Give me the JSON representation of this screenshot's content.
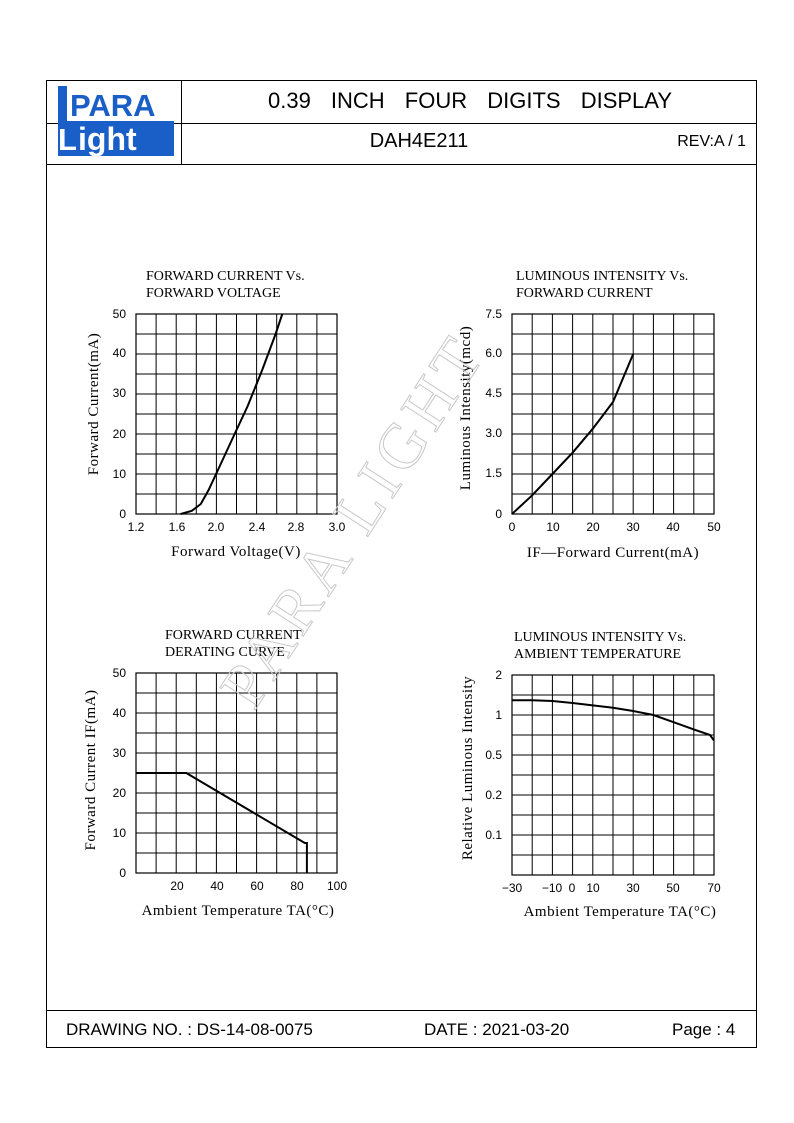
{
  "header": {
    "logo_top": "PARA",
    "logo_bottom": "ight",
    "logo_letter": "L",
    "title": "0.39 INCH FOUR DIGITS DISPLAY",
    "model": "DAH4E211",
    "revision": "REV:A / 1"
  },
  "watermark": "PARA LIGHT",
  "footer": {
    "drawing_no": "DRAWING NO. : DS-14-08-0075",
    "date": "DATE : 2021-03-20",
    "page": "Page : 4"
  },
  "chart_data": [
    {
      "type": "line",
      "title": [
        "FORWARD CURRENT Vs.",
        "FORWARD VOLTAGE"
      ],
      "xlabel": "Forward Voltage(V)",
      "ylabel": "Forward Current(mA)",
      "xlim": [
        1.2,
        3.0
      ],
      "ylim": [
        0,
        50
      ],
      "grid": true,
      "xticks": [
        "1.2",
        "1.6",
        "2.0",
        "2.4",
        "2.8",
        "3.0"
      ],
      "yticks": [
        "0",
        "10",
        "20",
        "30",
        "40",
        "50"
      ],
      "series": [
        {
          "x": [
            1.6,
            1.7,
            1.78,
            1.85,
            1.95,
            2.05,
            2.2,
            2.33,
            2.45,
            2.51
          ],
          "y": [
            0,
            0.8,
            2.5,
            6,
            12,
            18,
            27,
            36,
            45,
            50
          ]
        }
      ]
    },
    {
      "type": "line",
      "title": [
        "LUMINOUS INTENSITY Vs.",
        "FORWARD CURRENT"
      ],
      "xlabel": "IF—Forward Current(mA)",
      "ylabel": "Luminous Intensity(mcd)",
      "xlim": [
        0,
        50
      ],
      "ylim": [
        0,
        7.5
      ],
      "grid": true,
      "xticks": [
        "0",
        "10",
        "20",
        "30",
        "40",
        "50"
      ],
      "yticks": [
        "0",
        "1.5",
        "3.0",
        "4.5",
        "6.0",
        "7.5"
      ],
      "series": [
        {
          "x": [
            0,
            5,
            10,
            15,
            20,
            25,
            30
          ],
          "y": [
            0,
            0.7,
            1.5,
            2.3,
            3.2,
            4.2,
            6.0
          ]
        }
      ]
    },
    {
      "type": "line",
      "title": [
        "FORWARD CURRENT",
        "DERATING CURVE"
      ],
      "xlabel": "Ambient Temperature TA(°C)",
      "ylabel": "Forward Current IF(mA)",
      "xlim": [
        0,
        100
      ],
      "ylim": [
        0,
        50
      ],
      "grid": true,
      "xticks": [
        "20",
        "40",
        "60",
        "80",
        "100"
      ],
      "yticks": [
        "0",
        "10",
        "20",
        "30",
        "40",
        "50"
      ],
      "series": [
        {
          "x": [
            0,
            25,
            84,
            85,
            85
          ],
          "y": [
            25,
            25,
            7.5,
            7.5,
            0
          ]
        }
      ]
    },
    {
      "type": "line",
      "title": [
        "LUMINOUS INTENSITY Vs.",
        "AMBIENT TEMPERATURE"
      ],
      "xlabel": "Ambient Temperature TA(°C)",
      "ylabel": "Relative Luminous Intensity",
      "xlim": [
        -30,
        70
      ],
      "ylim": [
        0,
        2
      ],
      "grid": true,
      "xticks": [
        "−30",
        "−10",
        "0",
        "10",
        "30",
        "50",
        "70"
      ],
      "yticks": [
        "2",
        "1",
        "0.5",
        "0.2",
        "0.1"
      ],
      "series": [
        {
          "x": [
            -30,
            -20,
            -10,
            0,
            10,
            20,
            30,
            40,
            50,
            60,
            68,
            70
          ],
          "y": [
            1.37,
            1.37,
            1.35,
            1.3,
            1.24,
            1.18,
            1.1,
            1.0,
            0.91,
            0.82,
            0.75,
            0.68
          ]
        }
      ]
    }
  ]
}
